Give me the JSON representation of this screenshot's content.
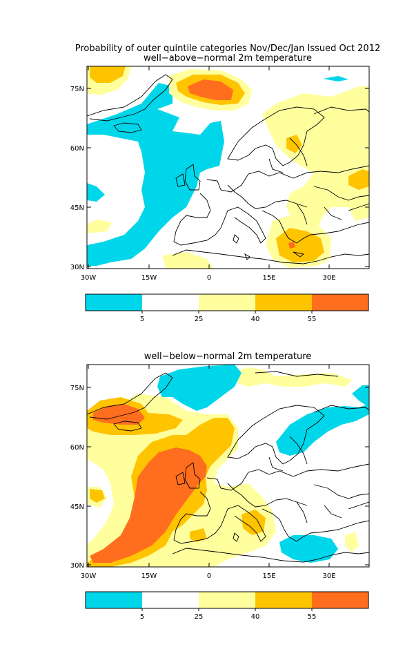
{
  "header": {
    "title_line1": "Probability of outer quintile categories Nov/Dec/Jan Issued Oct 2012"
  },
  "panels": [
    {
      "subtitle": "well−above−normal 2m temperature"
    },
    {
      "subtitle": "well−below−normal 2m temperature"
    }
  ],
  "axes": {
    "lat_ticks": [
      "75N",
      "60N",
      "45N",
      "30N"
    ],
    "lon_ticks": [
      "30W",
      "15W",
      "0",
      "15E",
      "30E"
    ]
  },
  "colorbar": {
    "labels": [
      "5",
      "25",
      "40",
      "55"
    ],
    "colors": [
      "#00d6ea",
      "#ffffff",
      "#ffff9e",
      "#ffc400",
      "#ff6e1e"
    ]
  },
  "colors": {
    "cyan": "#00d6ea",
    "yellow": "#ffff9e",
    "orange": "#ffc400",
    "red": "#ff6e1e"
  }
}
